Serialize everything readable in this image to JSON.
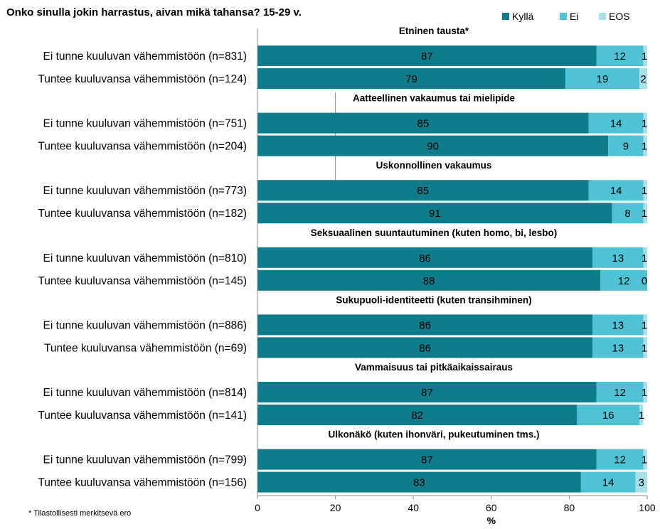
{
  "chart_data": {
    "type": "bar",
    "stacked": true,
    "orientation": "horizontal",
    "title": "Onko sinulla jokin harrastus, aivan mikä tahansa? 15-29 v.",
    "xlabel": "%",
    "xlim": [
      0,
      100
    ],
    "xticks": [
      "0",
      "20",
      "40",
      "60",
      "80",
      "100"
    ],
    "legend_position": "top-right",
    "legend": [
      "Kyllä",
      "Ei",
      "EOS"
    ],
    "colors": {
      "Kyllä": "#0e7c8a",
      "Ei": "#4fc3d6",
      "EOS": "#a8e0ea"
    },
    "footnote": "* Tilastollisesti merkitsevä ero",
    "groups": [
      {
        "title": "Etninen tausta*",
        "rows": [
          {
            "label": "Ei tunne kuuluvan vähemmistöön (n=831)",
            "values": [
              87,
              12,
              1
            ]
          },
          {
            "label": "Tuntee kuuluvansa vähemmistöön (n=124)",
            "values": [
              79,
              19,
              2
            ]
          }
        ]
      },
      {
        "title": "Aatteellinen vakaumus tai mielipide",
        "rows": [
          {
            "label": "Ei tunne kuuluvan vähemmistöön (n=751)",
            "values": [
              85,
              14,
              1
            ]
          },
          {
            "label": "Tuntee kuuluvansa vähemmistöön (n=204)",
            "values": [
              90,
              9,
              1
            ]
          }
        ]
      },
      {
        "title": "Uskonnollinen vakaumus",
        "rows": [
          {
            "label": "Ei tunne kuuluvan vähemmistöön (n=773)",
            "values": [
              85,
              14,
              1
            ]
          },
          {
            "label": "Tuntee kuuluvansa vähemmistöön (n=182)",
            "values": [
              91,
              8,
              1
            ]
          }
        ]
      },
      {
        "title": "Seksuaalinen suuntautuminen (kuten homo, bi, lesbo)",
        "rows": [
          {
            "label": "Ei tunne kuuluvan vähemmistöön (n=810)",
            "values": [
              86,
              13,
              1
            ]
          },
          {
            "label": "Tuntee kuuluvansa vähemmistöön (n=145)",
            "values": [
              88,
              12,
              0
            ]
          }
        ]
      },
      {
        "title": "Sukupuoli-identiteetti (kuten transihminen)",
        "rows": [
          {
            "label": "Ei tunne kuuluvan vähemmistöön (n=886)",
            "values": [
              86,
              13,
              1
            ]
          },
          {
            "label": "Tuntee kuuluvansa vähemmistöön (n=69)",
            "values": [
              86,
              13,
              1
            ]
          }
        ]
      },
      {
        "title": "Vammaisuus tai pitkäaikaissairaus",
        "rows": [
          {
            "label": "Ei tunne kuuluvan vähemmistöön (n=814)",
            "values": [
              87,
              12,
              1
            ]
          },
          {
            "label": "Tuntee kuuluvansa vähemmistöön (n=141)",
            "values": [
              82,
              16,
              1
            ]
          }
        ]
      },
      {
        "title": "Ulkonäkö (kuten ihonväri, pukeutuminen tms.)",
        "rows": [
          {
            "label": "Ei tunne kuuluvan vähemmistöön (n=799)",
            "values": [
              87,
              12,
              1
            ]
          },
          {
            "label": "Tuntee kuuluvansa vähemmistöön (n=156)",
            "values": [
              83,
              14,
              3
            ]
          }
        ]
      }
    ]
  }
}
